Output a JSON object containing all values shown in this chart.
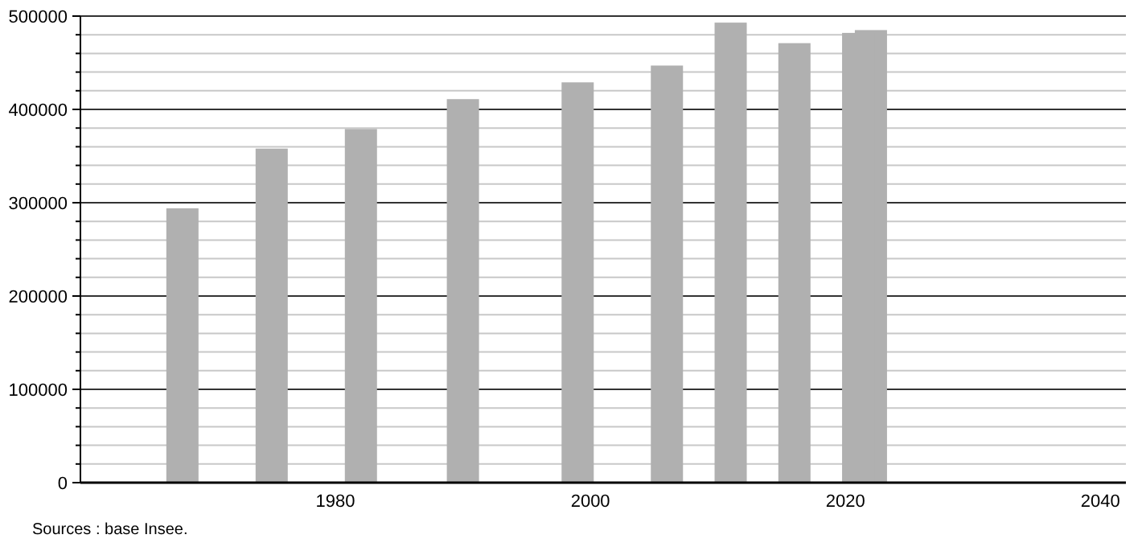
{
  "chart_data": {
    "type": "bar",
    "x": [
      1968,
      1975,
      1982,
      1990,
      1999,
      2006,
      2011,
      2016,
      2021,
      2022
    ],
    "values": [
      294000,
      358000,
      379000,
      411000,
      429000,
      447000,
      493000,
      471000,
      482000,
      485000
    ],
    "color": "#b0b0b0",
    "xlim": [
      1960,
      2042
    ],
    "xticks": [
      1980,
      2000,
      2020,
      2040
    ],
    "ylim": [
      0,
      500000
    ],
    "yticks": [
      0,
      {
        "value": 20000,
        "label": null
      },
      {
        "value": 40000,
        "label": null
      },
      {
        "value": 60000,
        "label": null
      },
      {
        "value": 80000,
        "label": null
      },
      100000,
      {
        "value": 120000,
        "label": null
      },
      {
        "value": 140000,
        "label": null
      },
      {
        "value": 160000,
        "label": null
      },
      {
        "value": 180000,
        "label": null
      },
      200000,
      {
        "value": 220000,
        "label": null
      },
      {
        "value": 240000,
        "label": null
      },
      {
        "value": 260000,
        "label": null
      },
      {
        "value": 280000,
        "label": null
      },
      300000,
      {
        "value": 320000,
        "label": null
      },
      {
        "value": 340000,
        "label": null
      },
      {
        "value": 360000,
        "label": null
      },
      {
        "value": 380000,
        "label": null
      },
      400000,
      {
        "value": 420000,
        "label": null
      },
      {
        "value": 440000,
        "label": null
      },
      {
        "value": 460000,
        "label": null
      },
      {
        "value": 480000,
        "label": null
      },
      500000
    ],
    "grid": "y",
    "annotations": [
      "Sources : base Insee."
    ]
  }
}
